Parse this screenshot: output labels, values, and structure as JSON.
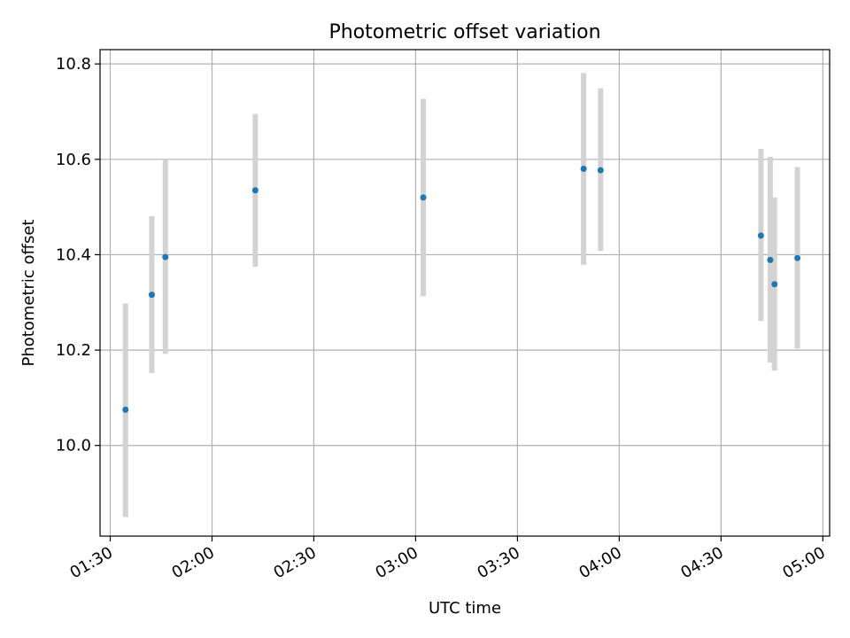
{
  "chart_data": {
    "type": "scatter",
    "title": "Photometric offset variation",
    "xlabel": "UTC time",
    "ylabel": "Photometric offset",
    "x_tick_labels": [
      "01:30",
      "02:00",
      "02:30",
      "03:00",
      "03:30",
      "04:00",
      "04:30",
      "05:00"
    ],
    "y_tick_labels": [
      "10.0",
      "10.2",
      "10.4",
      "10.6",
      "10.8"
    ],
    "xlim": [
      "01:27",
      "05:02"
    ],
    "ylim": [
      9.81,
      10.83
    ],
    "grid": true,
    "series": [
      {
        "marker_color": "#1f77b4",
        "errorbar_color": "#d3d3d3",
        "points": [
          {
            "x": "01:34:30",
            "y": 10.075,
            "yerr_low": 9.85,
            "yerr_high": 10.298
          },
          {
            "x": "01:42:15",
            "y": 10.316,
            "yerr_low": 10.152,
            "yerr_high": 10.481
          },
          {
            "x": "01:46:15",
            "y": 10.395,
            "yerr_low": 10.192,
            "yerr_high": 10.6
          },
          {
            "x": "02:12:45",
            "y": 10.535,
            "yerr_low": 10.375,
            "yerr_high": 10.695
          },
          {
            "x": "03:02:15",
            "y": 10.52,
            "yerr_low": 10.313,
            "yerr_high": 10.727
          },
          {
            "x": "03:49:30",
            "y": 10.58,
            "yerr_low": 10.379,
            "yerr_high": 10.781
          },
          {
            "x": "03:54:30",
            "y": 10.577,
            "yerr_low": 10.408,
            "yerr_high": 10.749
          },
          {
            "x": "04:41:45",
            "y": 10.44,
            "yerr_low": 10.261,
            "yerr_high": 10.622
          },
          {
            "x": "04:44:30",
            "y": 10.389,
            "yerr_low": 10.174,
            "yerr_high": 10.605
          },
          {
            "x": "04:45:45",
            "y": 10.338,
            "yerr_low": 10.157,
            "yerr_high": 10.52
          },
          {
            "x": "04:52:30",
            "y": 10.393,
            "yerr_low": 10.203,
            "yerr_high": 10.584
          }
        ]
      }
    ]
  }
}
